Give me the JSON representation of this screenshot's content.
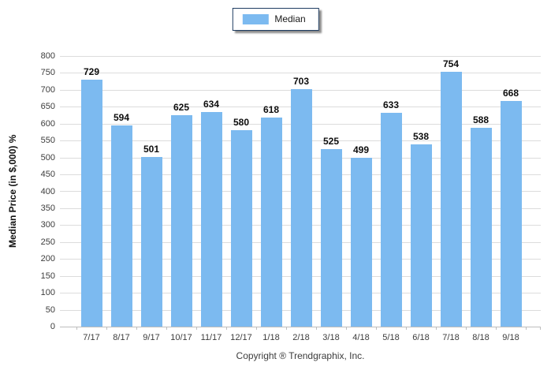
{
  "legend": {
    "items": [
      {
        "label": "Median",
        "color": "#7cbaf0"
      }
    ]
  },
  "chart_data": {
    "type": "bar",
    "title": "",
    "categories": [
      "7/17",
      "8/17",
      "9/17",
      "10/17",
      "11/17",
      "12/17",
      "1/18",
      "2/18",
      "3/18",
      "4/18",
      "5/18",
      "6/18",
      "7/18",
      "8/18",
      "9/18"
    ],
    "series": [
      {
        "name": "Median",
        "values": [
          729,
          594,
          501,
          625,
          634,
          580,
          618,
          703,
          525,
          499,
          633,
          538,
          754,
          588,
          668
        ]
      }
    ],
    "xlabel": "",
    "ylabel": "Median Price (in $,000) %",
    "ylim": [
      0,
      800
    ],
    "ytick_step": 50,
    "grid": "horizontal",
    "legend_position": "top-center",
    "bar_color": "#7cbaf0",
    "gridline_color": "#dcdcdc",
    "axis_line_color": "#bdbdbd",
    "value_labels_shown": true
  },
  "footer": {
    "copyright": "Copyright ® Trendgraphix, Inc."
  }
}
